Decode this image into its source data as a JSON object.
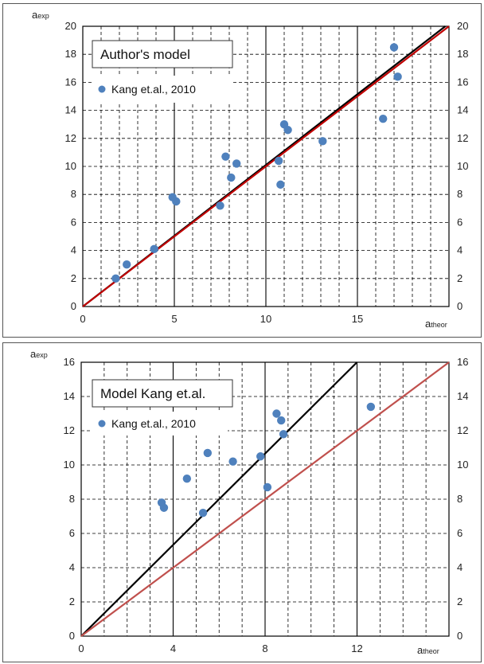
{
  "colors": {
    "points": "#4f81bd",
    "line_black": "#000000",
    "line_red_top": "#c00000",
    "line_red_bottom": "#c0504d",
    "grid": "#000000"
  },
  "chart_data": [
    {
      "type": "scatter",
      "title": "",
      "legend_title": "Author's model",
      "legend_placement": "top-left",
      "ylabel": {
        "main": "a",
        "sub": "exp"
      },
      "xlabel": {
        "main": "a",
        "sub": "theor"
      },
      "xlim": [
        0,
        20
      ],
      "ylim": [
        0,
        20
      ],
      "x_ticks": [
        0,
        5,
        10,
        15
      ],
      "y_ticks": [
        0,
        2,
        4,
        6,
        8,
        10,
        12,
        14,
        16,
        18,
        20
      ],
      "right_ticks": [
        "0",
        "2",
        "4",
        "6",
        "8",
        "10",
        "12",
        "14",
        "16",
        "18",
        "20"
      ],
      "grid": true,
      "series": [
        {
          "name": "Kang et.al., 2010",
          "points": [
            [
              1.8,
              2.0
            ],
            [
              2.4,
              3.0
            ],
            [
              3.9,
              4.1
            ],
            [
              4.9,
              7.8
            ],
            [
              5.1,
              7.5
            ],
            [
              7.5,
              7.2
            ],
            [
              7.8,
              10.7
            ],
            [
              8.1,
              9.2
            ],
            [
              8.4,
              10.2
            ],
            [
              10.7,
              10.4
            ],
            [
              10.8,
              8.7
            ],
            [
              11.0,
              13.0
            ],
            [
              11.2,
              12.6
            ],
            [
              13.1,
              11.8
            ],
            [
              16.4,
              13.4
            ],
            [
              17.0,
              18.5
            ],
            [
              17.2,
              16.4
            ]
          ]
        }
      ],
      "lines": [
        {
          "from": [
            0,
            0
          ],
          "to": [
            19.8,
            20
          ],
          "color": "line_black"
        },
        {
          "from": [
            0,
            0
          ],
          "to": [
            20,
            20
          ],
          "color": "line_red_top"
        }
      ]
    },
    {
      "type": "scatter",
      "title": "",
      "legend_title": "Model Kang et.al.",
      "legend_placement": "top-left",
      "ylabel": {
        "main": "a",
        "sub": "exp"
      },
      "xlabel": {
        "main": "a",
        "sub": "theor"
      },
      "xlim": [
        0,
        16
      ],
      "ylim": [
        0,
        16
      ],
      "x_ticks": [
        0,
        4,
        8,
        12
      ],
      "y_ticks": [
        0,
        2,
        4,
        6,
        8,
        10,
        12,
        14,
        16
      ],
      "right_ticks": [
        "0",
        "2",
        "4",
        "6",
        "8",
        "10",
        "12",
        "14",
        "16"
      ],
      "grid": true,
      "series": [
        {
          "name": "Kang et.al., 2010",
          "points": [
            [
              3.5,
              7.8
            ],
            [
              3.6,
              7.5
            ],
            [
              4.6,
              9.2
            ],
            [
              5.3,
              7.2
            ],
            [
              5.5,
              10.7
            ],
            [
              6.6,
              10.2
            ],
            [
              7.8,
              10.5
            ],
            [
              8.1,
              8.7
            ],
            [
              8.5,
              13.0
            ],
            [
              8.7,
              12.6
            ],
            [
              8.8,
              11.8
            ],
            [
              12.6,
              13.4
            ]
          ]
        }
      ],
      "lines": [
        {
          "from": [
            0,
            0
          ],
          "to": [
            12,
            16
          ],
          "color": "line_black"
        },
        {
          "from": [
            0,
            0
          ],
          "to": [
            16,
            16
          ],
          "color": "line_red_bottom"
        }
      ]
    }
  ]
}
